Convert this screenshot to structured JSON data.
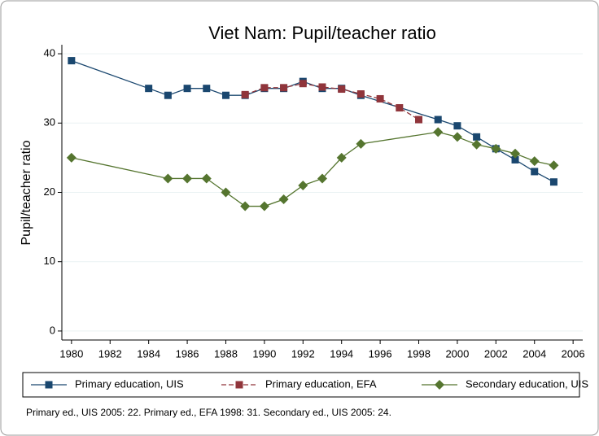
{
  "chart_data": {
    "type": "line",
    "title": "Viet Nam: Pupil/teacher ratio",
    "y_label": "Pupil/teacher ratio",
    "note": "Primary ed., UIS 2005: 22. Primary ed., EFA 1998: 31. Secondary ed., UIS 2005: 24.",
    "xlim": [
      1979.5,
      2006.5
    ],
    "xticks": [
      1980,
      1982,
      1984,
      1986,
      1988,
      1990,
      1992,
      1994,
      1996,
      1998,
      2000,
      2002,
      2004,
      2006
    ],
    "ylim": [
      -1.3,
      41.3
    ],
    "yticks": [
      0,
      10,
      20,
      30,
      40
    ],
    "grid": true,
    "legend": "bottom",
    "series": [
      {
        "name": "Primary education, UIS",
        "color": "#1a476f",
        "marker": "square",
        "dash": false,
        "x": [
          1980,
          1984,
          1985,
          1986,
          1987,
          1988,
          1989,
          1990,
          1991,
          1992,
          1993,
          1994,
          1995,
          1999,
          2000,
          2001,
          2002,
          2003,
          2004,
          2005
        ],
        "values": [
          39,
          35,
          34,
          35,
          35,
          34,
          34,
          35,
          35,
          36,
          35,
          35,
          34,
          30.5,
          29.6,
          28,
          26.3,
          24.7,
          23,
          21.5
        ]
      },
      {
        "name": "Primary education, EFA",
        "color": "#90353b",
        "marker": "square",
        "dash": true,
        "x": [
          1989,
          1990,
          1991,
          1992,
          1993,
          1994,
          1995,
          1996,
          1997,
          1998
        ],
        "values": [
          34.1,
          35.1,
          35.1,
          35.7,
          35.2,
          34.9,
          34.2,
          33.5,
          32.2,
          30.5
        ]
      },
      {
        "name": "Secondary education, UIS",
        "color": "#55752f",
        "marker": "diamond",
        "dash": false,
        "x": [
          1980,
          1985,
          1986,
          1987,
          1988,
          1989,
          1990,
          1991,
          1992,
          1993,
          1994,
          1995,
          1999,
          2000,
          2001,
          2002,
          2003,
          2004,
          2005
        ],
        "values": [
          25,
          22,
          22,
          22,
          20,
          18,
          18,
          19,
          21,
          22,
          25,
          27,
          28.7,
          28,
          26.9,
          26.3,
          25.6,
          24.5,
          23.9
        ]
      }
    ]
  }
}
